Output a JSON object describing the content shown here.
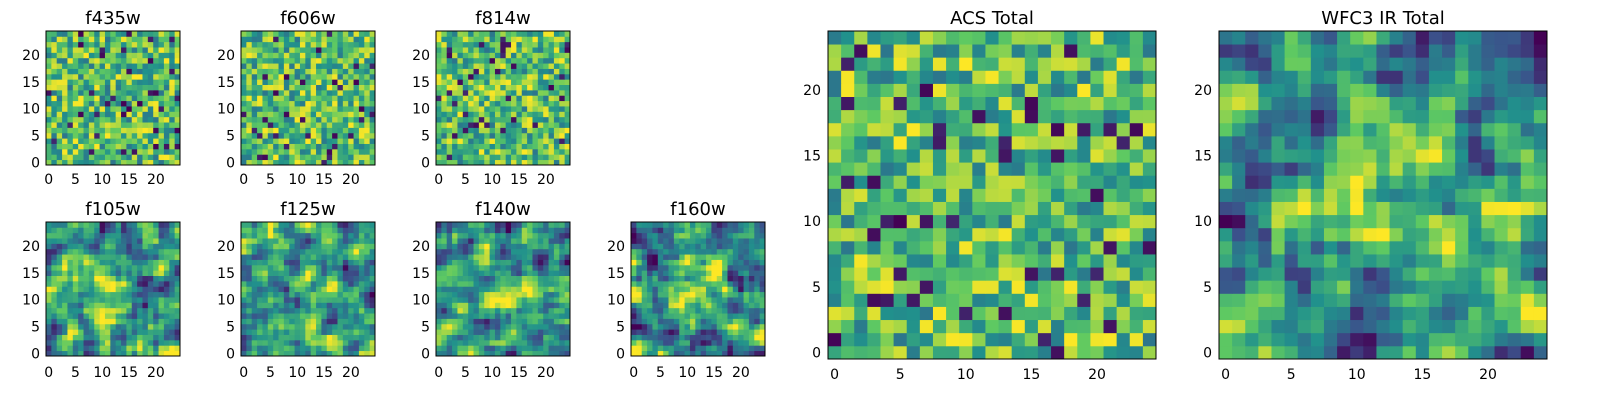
{
  "chart_data": [
    {
      "type": "heatmap",
      "title": "f435w",
      "xlim": [
        -0.5,
        24.5
      ],
      "ylim": [
        -0.5,
        24.5
      ],
      "xticks": [
        "0",
        "5",
        "10",
        "15",
        "20"
      ],
      "yticks": [
        "0",
        "5",
        "10",
        "15",
        "20"
      ],
      "colormap": "viridis",
      "pattern": "uniform_noise",
      "cells": 25
    },
    {
      "type": "heatmap",
      "title": "f606w",
      "xlim": [
        -0.5,
        24.5
      ],
      "ylim": [
        -0.5,
        24.5
      ],
      "xticks": [
        "0",
        "5",
        "10",
        "15",
        "20"
      ],
      "yticks": [
        "0",
        "5",
        "10",
        "15",
        "20"
      ],
      "colormap": "viridis",
      "pattern": "uniform_noise",
      "cells": 25
    },
    {
      "type": "heatmap",
      "title": "f814w",
      "xlim": [
        -0.5,
        24.5
      ],
      "ylim": [
        -0.5,
        24.5
      ],
      "xticks": [
        "0",
        "5",
        "10",
        "15",
        "20"
      ],
      "yticks": [
        "0",
        "5",
        "10",
        "15",
        "20"
      ],
      "colormap": "viridis",
      "pattern": "uniform_noise",
      "cells": 25
    },
    {
      "type": "heatmap",
      "title": "f105w",
      "xlim": [
        -0.5,
        24.5
      ],
      "ylim": [
        -0.5,
        24.5
      ],
      "xticks": [
        "0",
        "5",
        "10",
        "15",
        "20"
      ],
      "yticks": [
        "0",
        "5",
        "10",
        "15",
        "20"
      ],
      "colormap": "viridis",
      "pattern": "smooth_noise_with_central_source",
      "cells": 25
    },
    {
      "type": "heatmap",
      "title": "f125w",
      "xlim": [
        -0.5,
        24.5
      ],
      "ylim": [
        -0.5,
        24.5
      ],
      "xticks": [
        "0",
        "5",
        "10",
        "15",
        "20"
      ],
      "yticks": [
        "0",
        "5",
        "10",
        "15",
        "20"
      ],
      "colormap": "viridis",
      "pattern": "smooth_noise_with_central_source",
      "cells": 25
    },
    {
      "type": "heatmap",
      "title": "f140w",
      "xlim": [
        -0.5,
        24.5
      ],
      "ylim": [
        -0.5,
        24.5
      ],
      "xticks": [
        "0",
        "5",
        "10",
        "15",
        "20"
      ],
      "yticks": [
        "0",
        "5",
        "10",
        "15",
        "20"
      ],
      "colormap": "viridis",
      "pattern": "smooth_noise_with_central_source",
      "cells": 25
    },
    {
      "type": "heatmap",
      "title": "f160w",
      "xlim": [
        -0.5,
        24.5
      ],
      "ylim": [
        -0.5,
        24.5
      ],
      "xticks": [
        "0",
        "5",
        "10",
        "15",
        "20"
      ],
      "yticks": [
        "0",
        "5",
        "10",
        "15",
        "20"
      ],
      "colormap": "viridis",
      "pattern": "smooth_noise_with_central_source",
      "cells": 25
    },
    {
      "type": "heatmap",
      "title": "ACS Total",
      "xlim": [
        -0.5,
        24.5
      ],
      "ylim": [
        -0.5,
        24.5
      ],
      "xticks": [
        "0",
        "5",
        "10",
        "15",
        "20"
      ],
      "yticks": [
        "0",
        "5",
        "10",
        "15",
        "20"
      ],
      "colormap": "viridis",
      "pattern": "uniform_noise",
      "cells": 25
    },
    {
      "type": "heatmap",
      "title": "WFC3 IR Total",
      "xlim": [
        -0.5,
        24.5
      ],
      "ylim": [
        -0.5,
        24.5
      ],
      "xticks": [
        "0",
        "5",
        "10",
        "15",
        "20"
      ],
      "yticks": [
        "0",
        "5",
        "10",
        "15",
        "20"
      ],
      "colormap": "viridis",
      "pattern": "smooth_noise_with_central_source",
      "cells": 25
    }
  ],
  "colors": {
    "viridis": [
      "#440154",
      "#3b528b",
      "#21918c",
      "#5ec962",
      "#fde725"
    ],
    "frame": "#000000"
  }
}
